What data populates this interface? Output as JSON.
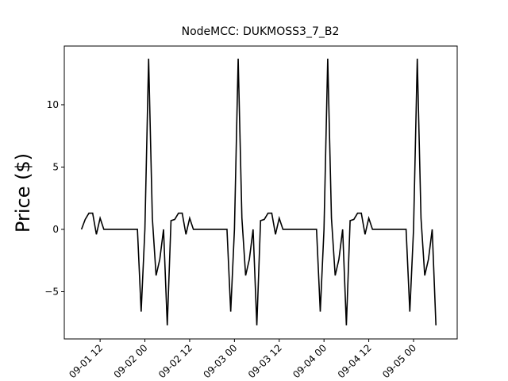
{
  "chart_data": {
    "type": "line",
    "title": "NodeMCC: DUKMOSS3_7_B2",
    "ylabel": "Price ($)",
    "x": [
      7,
      8,
      9,
      10,
      11,
      12,
      13,
      14,
      15,
      16,
      17,
      18,
      19,
      20,
      21,
      22,
      23,
      24,
      25,
      26,
      27,
      28,
      29,
      30,
      31,
      32,
      33,
      34,
      35,
      36,
      37,
      38,
      39,
      40,
      41,
      42,
      43,
      44,
      45,
      46,
      47,
      48,
      49,
      50,
      51,
      52,
      53,
      54,
      55,
      56,
      57,
      58,
      59,
      60,
      61,
      62,
      63,
      64,
      65,
      66,
      67,
      68,
      69,
      70,
      71,
      72,
      73,
      74,
      75,
      76,
      77,
      78,
      79,
      80,
      81,
      82,
      83,
      84,
      85,
      86,
      87,
      88,
      89,
      90,
      91,
      92,
      93,
      94,
      95,
      96,
      97,
      98,
      99,
      100,
      101,
      102
    ],
    "series": [
      {
        "name": "Price",
        "color": "#000000",
        "values": [
          0,
          0.8,
          1.3,
          1.3,
          -0.4,
          0.9,
          0,
          0,
          0,
          0,
          0,
          0,
          0,
          0,
          0,
          0,
          -6.6,
          0,
          13.7,
          0.9,
          -3.7,
          -2.4,
          0,
          -7.7,
          0.7,
          0.8,
          1.3,
          1.3,
          -0.4,
          0.9,
          0,
          0,
          0,
          0,
          0,
          0,
          0,
          0,
          0,
          0,
          -6.6,
          0,
          13.7,
          0.9,
          -3.7,
          -2.4,
          0,
          -7.7,
          0.7,
          0.8,
          1.3,
          1.3,
          -0.4,
          0.9,
          0,
          0,
          0,
          0,
          0,
          0,
          0,
          0,
          0,
          0,
          -6.6,
          0,
          13.7,
          0.9,
          -3.7,
          -2.4,
          0,
          -7.7,
          0.7,
          0.8,
          1.3,
          1.3,
          -0.4,
          0.9,
          0,
          0,
          0,
          0,
          0,
          0,
          0,
          0,
          0,
          0,
          -6.6,
          0,
          13.7,
          0.9,
          -3.7,
          -2.4,
          0,
          -7.7
        ]
      }
    ],
    "xlim": [
      2.4,
      107.7
    ],
    "xticks": [
      {
        "value": 12,
        "label": "09-01 12"
      },
      {
        "value": 24,
        "label": "09-02 00"
      },
      {
        "value": 36,
        "label": "09-02 12"
      },
      {
        "value": 48,
        "label": "09-03 00"
      },
      {
        "value": 60,
        "label": "09-03 12"
      },
      {
        "value": 72,
        "label": "09-04 00"
      },
      {
        "value": 84,
        "label": "09-04 12"
      },
      {
        "value": 96,
        "label": "09-05 00"
      }
    ],
    "ylim": [
      -8.79,
      14.71
    ],
    "yticks": [
      {
        "value": -5,
        "label": "−5"
      },
      0,
      5,
      10
    ],
    "grid": false
  }
}
